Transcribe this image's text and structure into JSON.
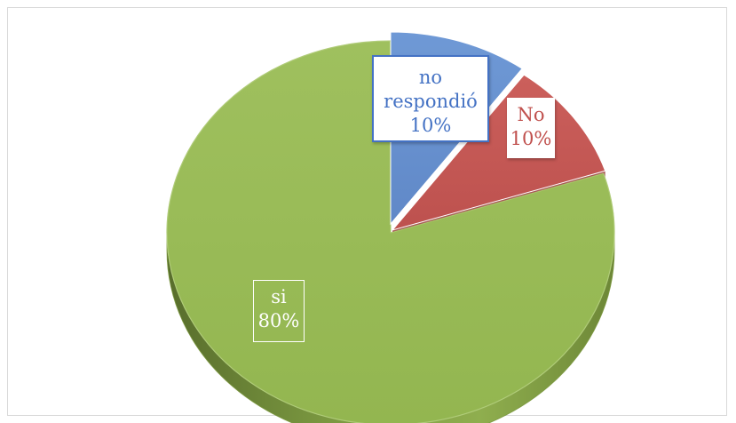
{
  "chart_data": {
    "type": "pie",
    "style": "3d-exploded",
    "title": "",
    "slices": [
      {
        "name": "si",
        "value": 80,
        "label": "80%",
        "color": "#9bbb59"
      },
      {
        "name": "No",
        "value": 10,
        "label": "10%",
        "color": "#c0504d"
      },
      {
        "name": "no respondió",
        "value": 10,
        "label": "10%",
        "color": "#4472c4"
      }
    ],
    "legend": "none"
  },
  "labels": {
    "no_respondio": {
      "line1": "no",
      "line2": "respondió",
      "line3": "10%"
    },
    "no": {
      "line1": "No",
      "line2": "10%"
    },
    "si": {
      "line1": "si",
      "line2": "80%"
    }
  }
}
